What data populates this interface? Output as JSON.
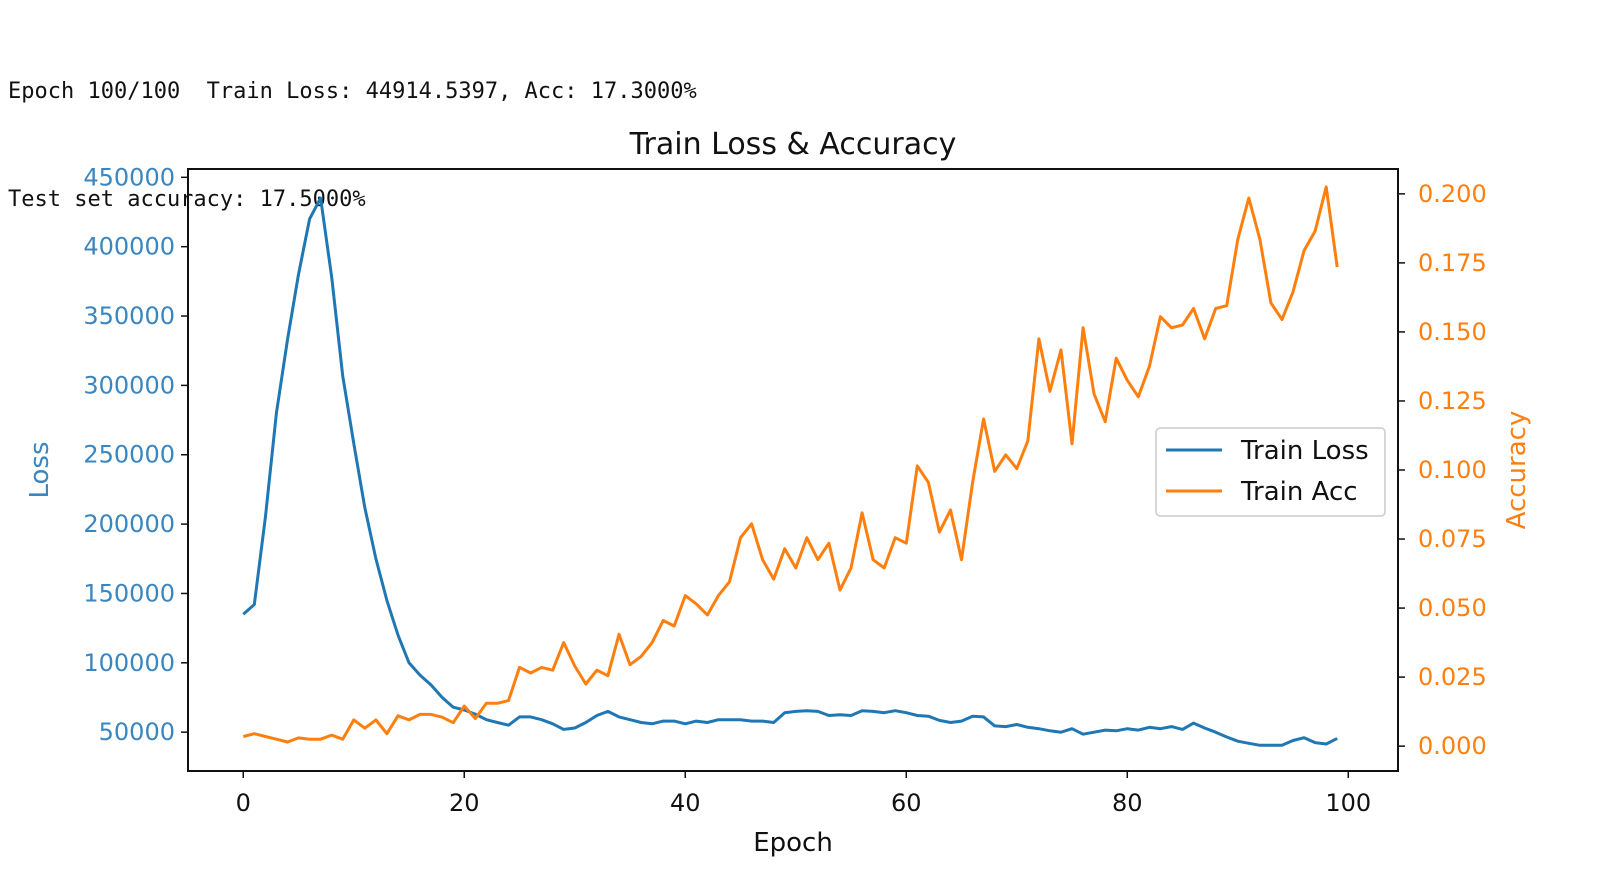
{
  "console": {
    "lines": [
      "Epoch 100/100  Train Loss: 44914.5397, Acc: 17.3000%",
      "Test set accuracy: 17.5000%"
    ]
  },
  "chart_data": {
    "type": "line",
    "title": "Train Loss & Accuracy",
    "xlabel": "Epoch",
    "ylabel_left": "Loss",
    "ylabel_right": "Accuracy",
    "xlim": [
      -5,
      104.5
    ],
    "ylim_left": [
      22000,
      456000
    ],
    "ylim_right": [
      -0.009,
      0.209
    ],
    "x_ticks": [
      0,
      20,
      40,
      60,
      80,
      100
    ],
    "y_ticks_left": [
      50000,
      100000,
      150000,
      200000,
      250000,
      300000,
      350000,
      400000,
      450000
    ],
    "y_ticks_right": [
      0.0,
      0.025,
      0.05,
      0.075,
      0.1,
      0.125,
      0.15,
      0.175,
      0.2
    ],
    "y_ticks_right_labels": [
      "0.000",
      "0.025",
      "0.050",
      "0.075",
      "0.100",
      "0.125",
      "0.150",
      "0.175",
      "0.200"
    ],
    "grid": false,
    "legend_position": "center-right",
    "colors": {
      "loss": "#1f77b4",
      "acc": "#ff7f0e",
      "left_axis_text": "#3a86c0",
      "right_axis_text": "#ff7f0e"
    },
    "series": [
      {
        "name": "Train Loss",
        "axis": "left",
        "values": [
          135000,
          142000,
          205000,
          280000,
          333000,
          380000,
          420000,
          435000,
          378000,
          307000,
          258000,
          212000,
          175000,
          145000,
          120000,
          100000,
          91000,
          84000,
          75000,
          68000,
          66000,
          63000,
          59000,
          57000,
          55000,
          61000,
          61000,
          59000,
          56000,
          52000,
          53000,
          57000,
          62000,
          65000,
          61000,
          59000,
          57000,
          56000,
          58000,
          58000,
          56000,
          58000,
          57000,
          59000,
          59000,
          59000,
          58000,
          58000,
          57000,
          64000,
          65000,
          65500,
          65000,
          62000,
          62500,
          62000,
          65500,
          65000,
          64000,
          65500,
          64000,
          62000,
          61500,
          58500,
          57000,
          58000,
          61500,
          61000,
          54500,
          54000,
          55500,
          53500,
          52500,
          51000,
          50000,
          52500,
          48500,
          50000,
          51500,
          51000,
          52500,
          51500,
          53500,
          52500,
          54000,
          52000,
          56500,
          53000,
          50000,
          46500,
          43500,
          42000,
          40500,
          40500,
          40500,
          44000,
          46000,
          42500,
          41500,
          45500
        ]
      },
      {
        "name": "Train Acc",
        "axis": "right",
        "values": [
          0.0035,
          0.0045,
          0.0035,
          0.0025,
          0.0015,
          0.003,
          0.0025,
          0.0025,
          0.004,
          0.0025,
          0.0095,
          0.0065,
          0.0095,
          0.0045,
          0.011,
          0.0095,
          0.0115,
          0.0115,
          0.0105,
          0.0085,
          0.0145,
          0.01,
          0.0155,
          0.0155,
          0.0165,
          0.0285,
          0.0265,
          0.0285,
          0.0275,
          0.0375,
          0.029,
          0.0225,
          0.0275,
          0.0255,
          0.0405,
          0.0295,
          0.0325,
          0.0375,
          0.0455,
          0.0435,
          0.0545,
          0.0515,
          0.0475,
          0.0545,
          0.0595,
          0.0755,
          0.0805,
          0.0675,
          0.0605,
          0.0715,
          0.0645,
          0.0755,
          0.0675,
          0.0735,
          0.0565,
          0.0645,
          0.0845,
          0.0675,
          0.0645,
          0.0755,
          0.0735,
          0.1015,
          0.0955,
          0.0775,
          0.0855,
          0.0675,
          0.0955,
          0.1185,
          0.0995,
          0.1055,
          0.1005,
          0.1105,
          0.1475,
          0.1285,
          0.1435,
          0.1095,
          0.1515,
          0.1275,
          0.1175,
          0.1405,
          0.1325,
          0.1265,
          0.1375,
          0.1555,
          0.1515,
          0.1525,
          0.1585,
          0.1475,
          0.1585,
          0.1595,
          0.1835,
          0.1985,
          0.1835,
          0.1605,
          0.1545,
          0.1645,
          0.1795,
          0.1865,
          0.2025,
          0.1735
        ]
      }
    ]
  }
}
